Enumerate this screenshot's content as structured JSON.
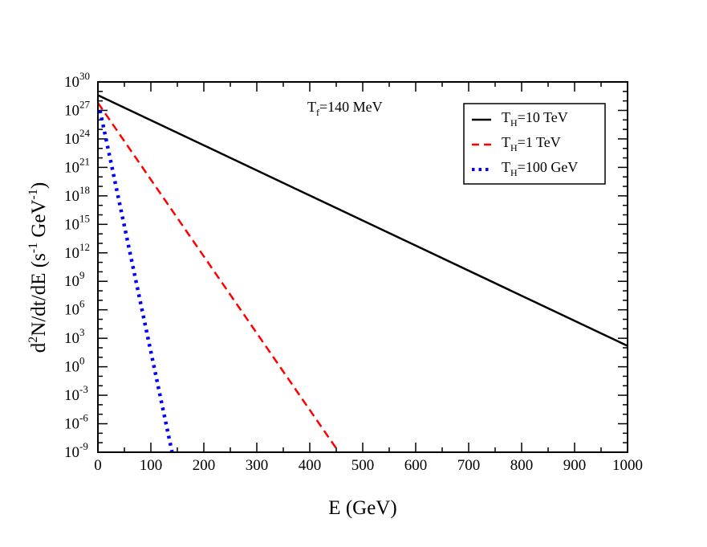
{
  "chart_data": {
    "type": "line",
    "xlabel": "E (GeV)",
    "ylabel": {
      "prefix": "d",
      "sup1": "2",
      "mid": "N/dt/dE (s",
      "sup2": "-1",
      "mid2": " GeV",
      "sup3": "-1",
      "suffix": ")"
    },
    "xlim": [
      0,
      1000
    ],
    "ylim_log10": [
      -9,
      30
    ],
    "y_scale": "log",
    "x_ticks": [
      0,
      100,
      200,
      300,
      400,
      500,
      600,
      700,
      800,
      900,
      1000
    ],
    "x_tick_labels": [
      "0",
      "100",
      "200",
      "300",
      "400",
      "500",
      "600",
      "700",
      "800",
      "900",
      "1000"
    ],
    "y_tick_exponents": [
      -9,
      -6,
      -3,
      0,
      3,
      6,
      9,
      12,
      15,
      18,
      21,
      24,
      27,
      30
    ],
    "y_tick_labels": [
      {
        "base": "10",
        "exp": "-9"
      },
      {
        "base": "10",
        "exp": "-6"
      },
      {
        "base": "10",
        "exp": "-3"
      },
      {
        "base": "10",
        "exp": "0"
      },
      {
        "base": "10",
        "exp": "3"
      },
      {
        "base": "10",
        "exp": "6"
      },
      {
        "base": "10",
        "exp": "9"
      },
      {
        "base": "10",
        "exp": "12"
      },
      {
        "base": "10",
        "exp": "15"
      },
      {
        "base": "10",
        "exp": "18"
      },
      {
        "base": "10",
        "exp": "21"
      },
      {
        "base": "10",
        "exp": "24"
      },
      {
        "base": "10",
        "exp": "27"
      },
      {
        "base": "10",
        "exp": "30"
      }
    ],
    "annotation": {
      "base": "T",
      "sub": "f",
      "rest": "=140 MeV"
    },
    "grid": false,
    "legend_position": "top-right",
    "series": [
      {
        "legend": {
          "base": "T",
          "sub": "H",
          "rest": "=10 TeV"
        },
        "color": "#000000",
        "style": "solid",
        "x": [
          0,
          1000
        ],
        "log10_y": [
          28.6,
          2.2
        ]
      },
      {
        "legend": {
          "base": "T",
          "sub": "H",
          "rest": "=1 TeV"
        },
        "color": "#ff0000",
        "style": "dashed",
        "x": [
          0,
          455
        ],
        "log10_y": [
          27.8,
          -9.0
        ]
      },
      {
        "legend": {
          "base": "T",
          "sub": "H",
          "rest": "=100 GeV"
        },
        "color": "#0000ff",
        "style": "dotted",
        "x": [
          4,
          140
        ],
        "log10_y": [
          27.0,
          -9.0
        ]
      }
    ]
  }
}
